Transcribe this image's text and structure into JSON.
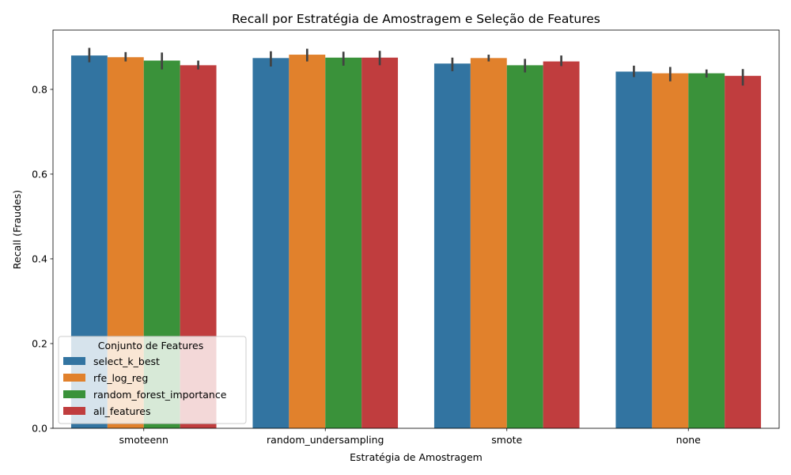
{
  "chart_data": {
    "type": "bar",
    "title": "Recall por Estratégia de Amostragem e Seleção de Features",
    "xlabel": "Estratégia de Amostragem",
    "ylabel": "Recall (Fraudes)",
    "categories": [
      "smoteenn",
      "random_undersampling",
      "smote",
      "none"
    ],
    "ylim": [
      0,
      0.94
    ],
    "yticks": [
      "0.0",
      "0.2",
      "0.4",
      "0.6",
      "0.8"
    ],
    "grid": false,
    "legend": {
      "title": "Conjunto de Features",
      "placement": "lower-left"
    },
    "series": [
      {
        "name": "select_k_best",
        "color": "#3274a1",
        "values": [
          0.88,
          0.874,
          0.861,
          0.842
        ],
        "error_low": [
          0.864,
          0.854,
          0.843,
          0.829
        ],
        "error_high": [
          0.898,
          0.89,
          0.875,
          0.856
        ]
      },
      {
        "name": "rfe_log_reg",
        "color": "#e1812c",
        "values": [
          0.876,
          0.882,
          0.874,
          0.838
        ],
        "error_low": [
          0.866,
          0.866,
          0.866,
          0.819
        ],
        "error_high": [
          0.888,
          0.896,
          0.882,
          0.853
        ]
      },
      {
        "name": "random_forest_importance",
        "color": "#3a923a",
        "values": [
          0.868,
          0.875,
          0.857,
          0.838
        ],
        "error_low": [
          0.847,
          0.856,
          0.84,
          0.828
        ],
        "error_high": [
          0.887,
          0.889,
          0.872,
          0.847
        ]
      },
      {
        "name": "all_features",
        "color": "#c03d3e",
        "values": [
          0.857,
          0.875,
          0.866,
          0.832
        ],
        "error_low": [
          0.847,
          0.857,
          0.855,
          0.809
        ],
        "error_high": [
          0.868,
          0.891,
          0.88,
          0.848
        ]
      }
    ]
  }
}
